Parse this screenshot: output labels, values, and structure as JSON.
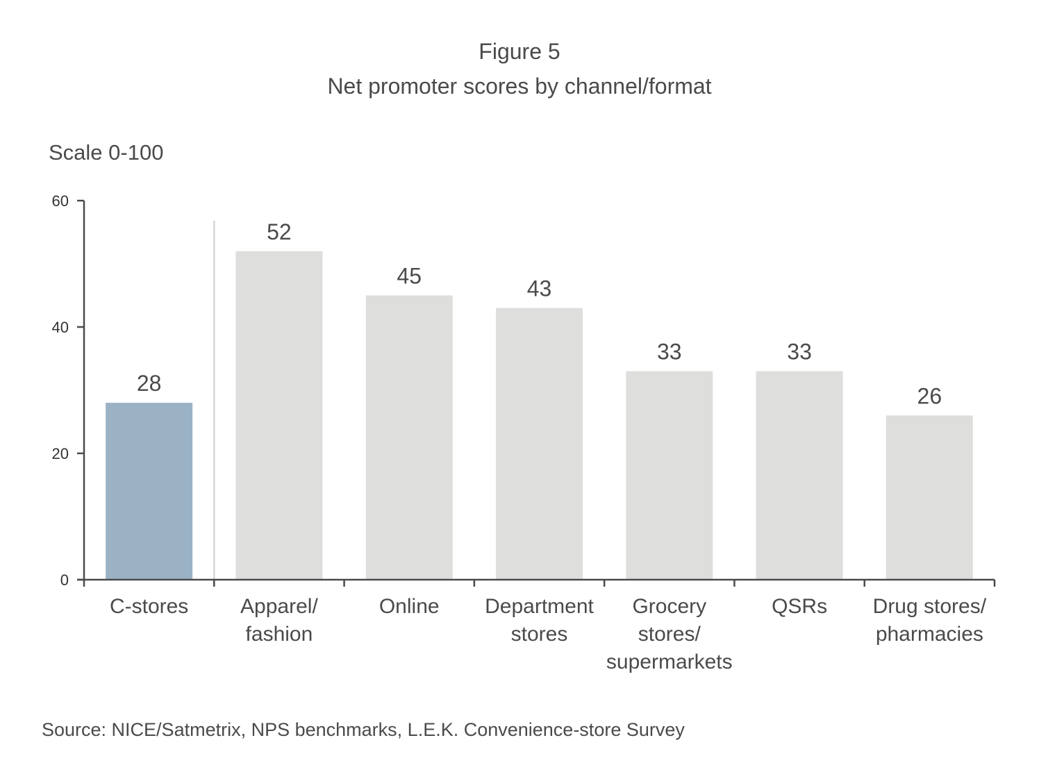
{
  "figure": {
    "label": "Figure 5",
    "title": "Net promoter scores by channel/format",
    "scale_note": "Scale 0-100",
    "source": "Source: NICE/Satmetrix, NPS benchmarks, L.E.K. Convenience-store Survey"
  },
  "colors": {
    "highlight_bar": "#9ab2c4",
    "other_bar": "#dededd",
    "axis": "#4a4a4a",
    "separator": "#d6d6d6"
  },
  "chart_data": {
    "type": "bar",
    "title": "Net promoter scores by channel/format",
    "ylabel": "Scale 0-100",
    "ylim": [
      0,
      60
    ],
    "yticks": [
      0,
      20,
      40,
      60
    ],
    "categories": [
      [
        "C-stores"
      ],
      [
        "Apparel/",
        "fashion"
      ],
      [
        "Online"
      ],
      [
        "Department",
        "stores"
      ],
      [
        "Grocery",
        "stores/",
        "supermarkets"
      ],
      [
        "QSRs"
      ],
      [
        "Drug stores/",
        "pharmacies"
      ]
    ],
    "values": [
      28,
      52,
      45,
      43,
      33,
      33,
      26
    ],
    "highlight_index": 0,
    "grid": false,
    "legend": "none"
  }
}
